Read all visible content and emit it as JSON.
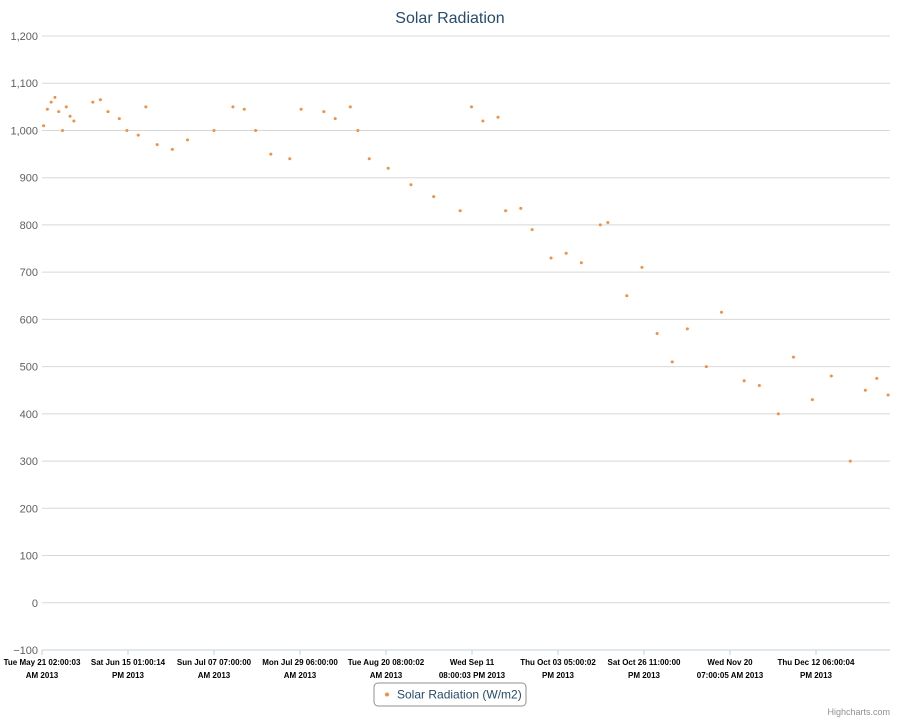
{
  "colors": {
    "series": "#f28f43",
    "grid": "#d8d8d8",
    "title": "#274b6d"
  },
  "legend_icon": "dot-icon",
  "credits": "Highcharts.com",
  "chart_data": {
    "type": "scatter",
    "title": "Solar Radiation",
    "xlabel": "",
    "ylabel": "",
    "ylim": [
      -100,
      1200
    ],
    "yticks": [
      "−100",
      "0",
      "100",
      "200",
      "300",
      "400",
      "500",
      "600",
      "700",
      "800",
      "900",
      "1,000",
      "1,100",
      "1,200"
    ],
    "grid": true,
    "legend_position": "bottom-center",
    "xlim": [
      "2013-05-21T02:00:03",
      "2013-12-31T00:00:00"
    ],
    "x_ticks": [
      {
        "line1": "Tue May 21 02:00:03",
        "line2": "AM 2013"
      },
      {
        "line1": "Sat Jun 15 01:00:14",
        "line2": "PM 2013"
      },
      {
        "line1": "Sun Jul 07 07:00:00",
        "line2": "AM 2013"
      },
      {
        "line1": "Mon Jul 29 06:00:00",
        "line2": "AM 2013"
      },
      {
        "line1": "Tue Aug 20 08:00:02",
        "line2": "AM 2013"
      },
      {
        "line1": "Wed Sep 11",
        "line2": "08:00:03 PM 2013"
      },
      {
        "line1": "Thu Oct 03 05:00:02",
        "line2": "PM 2013"
      },
      {
        "line1": "Sat Oct 26 11:00:00",
        "line2": "PM 2013"
      },
      {
        "line1": "Wed Nov 20",
        "line2": "07:00:05 AM 2013"
      },
      {
        "line1": "Thu Dec 12 06:00:04",
        "line2": "PM 2013"
      }
    ],
    "series": [
      {
        "name": "Solar Radiation (W/m2)",
        "color": "#f28f43",
        "points": [
          [
            "2013-05-21T12:00",
            1010
          ],
          [
            "2013-05-22T12:00",
            1045
          ],
          [
            "2013-05-23T12:00",
            1060
          ],
          [
            "2013-05-24T12:00",
            1070
          ],
          [
            "2013-05-25T12:00",
            1040
          ],
          [
            "2013-05-26T12:00",
            1000
          ],
          [
            "2013-05-27T12:00",
            1050
          ],
          [
            "2013-05-28T12:00",
            1030
          ],
          [
            "2013-05-29T12:00",
            1020
          ],
          [
            "2013-06-03T12:00",
            1060
          ],
          [
            "2013-06-05T12:00",
            1065
          ],
          [
            "2013-06-07T12:00",
            1040
          ],
          [
            "2013-06-10T12:00",
            1025
          ],
          [
            "2013-06-12T12:00",
            1000
          ],
          [
            "2013-06-15T12:00",
            990
          ],
          [
            "2013-06-17T12:00",
            1050
          ],
          [
            "2013-06-20T12:00",
            970
          ],
          [
            "2013-06-24T12:00",
            960
          ],
          [
            "2013-06-28T12:00",
            980
          ],
          [
            "2013-07-05T12:00",
            1000
          ],
          [
            "2013-07-10T12:00",
            1050
          ],
          [
            "2013-07-13T12:00",
            1045
          ],
          [
            "2013-07-16T12:00",
            1000
          ],
          [
            "2013-07-20T12:00",
            950
          ],
          [
            "2013-07-25T12:00",
            940
          ],
          [
            "2013-07-28T12:00",
            1045
          ],
          [
            "2013-08-03T12:00",
            1040
          ],
          [
            "2013-08-06T12:00",
            1025
          ],
          [
            "2013-08-10T12:00",
            1050
          ],
          [
            "2013-08-12T12:00",
            1000
          ],
          [
            "2013-08-15T12:00",
            940
          ],
          [
            "2013-08-20T12:00",
            920
          ],
          [
            "2013-08-26T12:00",
            885
          ],
          [
            "2013-09-01T12:00",
            860
          ],
          [
            "2013-09-08T12:00",
            830
          ],
          [
            "2013-09-11T12:00",
            1050
          ],
          [
            "2013-09-14T12:00",
            1020
          ],
          [
            "2013-09-18T12:00",
            1028
          ],
          [
            "2013-09-20T12:00",
            830
          ],
          [
            "2013-09-24T12:00",
            835
          ],
          [
            "2013-09-27T12:00",
            790
          ],
          [
            "2013-10-02T12:00",
            730
          ],
          [
            "2013-10-06T12:00",
            740
          ],
          [
            "2013-10-10T12:00",
            720
          ],
          [
            "2013-10-15T12:00",
            800
          ],
          [
            "2013-10-17T12:00",
            805
          ],
          [
            "2013-10-22T12:00",
            650
          ],
          [
            "2013-10-26T12:00",
            710
          ],
          [
            "2013-10-30T12:00",
            570
          ],
          [
            "2013-11-03T12:00",
            510
          ],
          [
            "2013-11-07T12:00",
            580
          ],
          [
            "2013-11-12T12:00",
            500
          ],
          [
            "2013-11-16T12:00",
            615
          ],
          [
            "2013-11-22T12:00",
            470
          ],
          [
            "2013-11-26T12:00",
            460
          ],
          [
            "2013-12-01T12:00",
            400
          ],
          [
            "2013-12-05T12:00",
            520
          ],
          [
            "2013-12-10T12:00",
            430
          ],
          [
            "2013-12-15T12:00",
            480
          ],
          [
            "2013-12-20T12:00",
            300
          ],
          [
            "2013-12-24T12:00",
            450
          ],
          [
            "2013-12-27T12:00",
            475
          ],
          [
            "2013-12-30T12:00",
            440
          ]
        ]
      }
    ]
  }
}
